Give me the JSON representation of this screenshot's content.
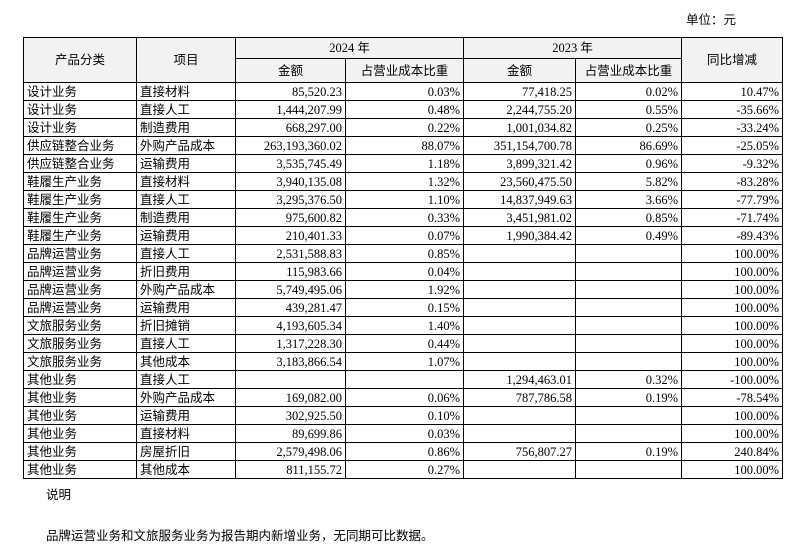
{
  "header": {
    "unit": "单位：元"
  },
  "table": {
    "header_row1": [
      "产品分类",
      "项目",
      "2024 年",
      "2023 年",
      "同比增减"
    ],
    "header_row2": [
      "金额",
      "占营业成本比重",
      "金额",
      "占营业成本比重"
    ],
    "rows": [
      [
        "设计业务",
        "直接材料",
        "85,520.23",
        "0.03%",
        "77,418.25",
        "0.02%",
        "10.47%"
      ],
      [
        "设计业务",
        "直接人工",
        "1,444,207.99",
        "0.48%",
        "2,244,755.20",
        "0.55%",
        "-35.66%"
      ],
      [
        "设计业务",
        "制造费用",
        "668,297.00",
        "0.22%",
        "1,001,034.82",
        "0.25%",
        "-33.24%"
      ],
      [
        "供应链整合业务",
        "外购产品成本",
        "263,193,360.02",
        "88.07%",
        "351,154,700.78",
        "86.69%",
        "-25.05%"
      ],
      [
        "供应链整合业务",
        "运输费用",
        "3,535,745.49",
        "1.18%",
        "3,899,321.42",
        "0.96%",
        "-9.32%"
      ],
      [
        "鞋履生产业务",
        "直接材料",
        "3,940,135.08",
        "1.32%",
        "23,560,475.50",
        "5.82%",
        "-83.28%"
      ],
      [
        "鞋履生产业务",
        "直接人工",
        "3,295,376.50",
        "1.10%",
        "14,837,949.63",
        "3.66%",
        "-77.79%"
      ],
      [
        "鞋履生产业务",
        "制造费用",
        "975,600.82",
        "0.33%",
        "3,451,981.02",
        "0.85%",
        "-71.74%"
      ],
      [
        "鞋履生产业务",
        "运输费用",
        "210,401.33",
        "0.07%",
        "1,990,384.42",
        "0.49%",
        "-89.43%"
      ],
      [
        "品牌运营业务",
        "直接人工",
        "2,531,588.83",
        "0.85%",
        null,
        null,
        "100.00%"
      ],
      [
        "品牌运营业务",
        "折旧费用",
        "115,983.66",
        "0.04%",
        null,
        null,
        "100.00%"
      ],
      [
        "品牌运营业务",
        "外购产品成本",
        "5,749,495.06",
        "1.92%",
        null,
        null,
        "100.00%"
      ],
      [
        "品牌运营业务",
        "运输费用",
        "439,281.47",
        "0.15%",
        null,
        null,
        "100.00%"
      ],
      [
        "文旅服务业务",
        "折旧摊销",
        "4,193,605.34",
        "1.40%",
        null,
        null,
        "100.00%"
      ],
      [
        "文旅服务业务",
        "直接人工",
        "1,317,228.30",
        "0.44%",
        null,
        null,
        "100.00%"
      ],
      [
        "文旅服务业务",
        "其他成本",
        "3,183,866.54",
        "1.07%",
        null,
        null,
        "100.00%"
      ],
      [
        "其他业务",
        "直接人工",
        null,
        null,
        "1,294,463.01",
        "0.32%",
        "-100.00%"
      ],
      [
        "其他业务",
        "外购产品成本",
        "169,082.00",
        "0.06%",
        "787,786.58",
        "0.19%",
        "-78.54%"
      ],
      [
        "其他业务",
        "运输费用",
        "302,925.50",
        "0.10%",
        null,
        null,
        "100.00%"
      ],
      [
        "其他业务",
        "直接材料",
        "89,699.86",
        "0.03%",
        null,
        null,
        "100.00%"
      ],
      [
        "其他业务",
        "房屋折旧",
        "2,579,498.06",
        "0.86%",
        "756,807.27",
        "0.19%",
        "240.84%"
      ],
      [
        "其他业务",
        "其他成本",
        "811,155.72",
        "0.27%",
        null,
        null,
        "100.00%"
      ]
    ]
  },
  "notes": {
    "label": "说明",
    "text": "品牌运营业务和文旅服务业务为报告期内新增业务，无同期可比数据。"
  }
}
